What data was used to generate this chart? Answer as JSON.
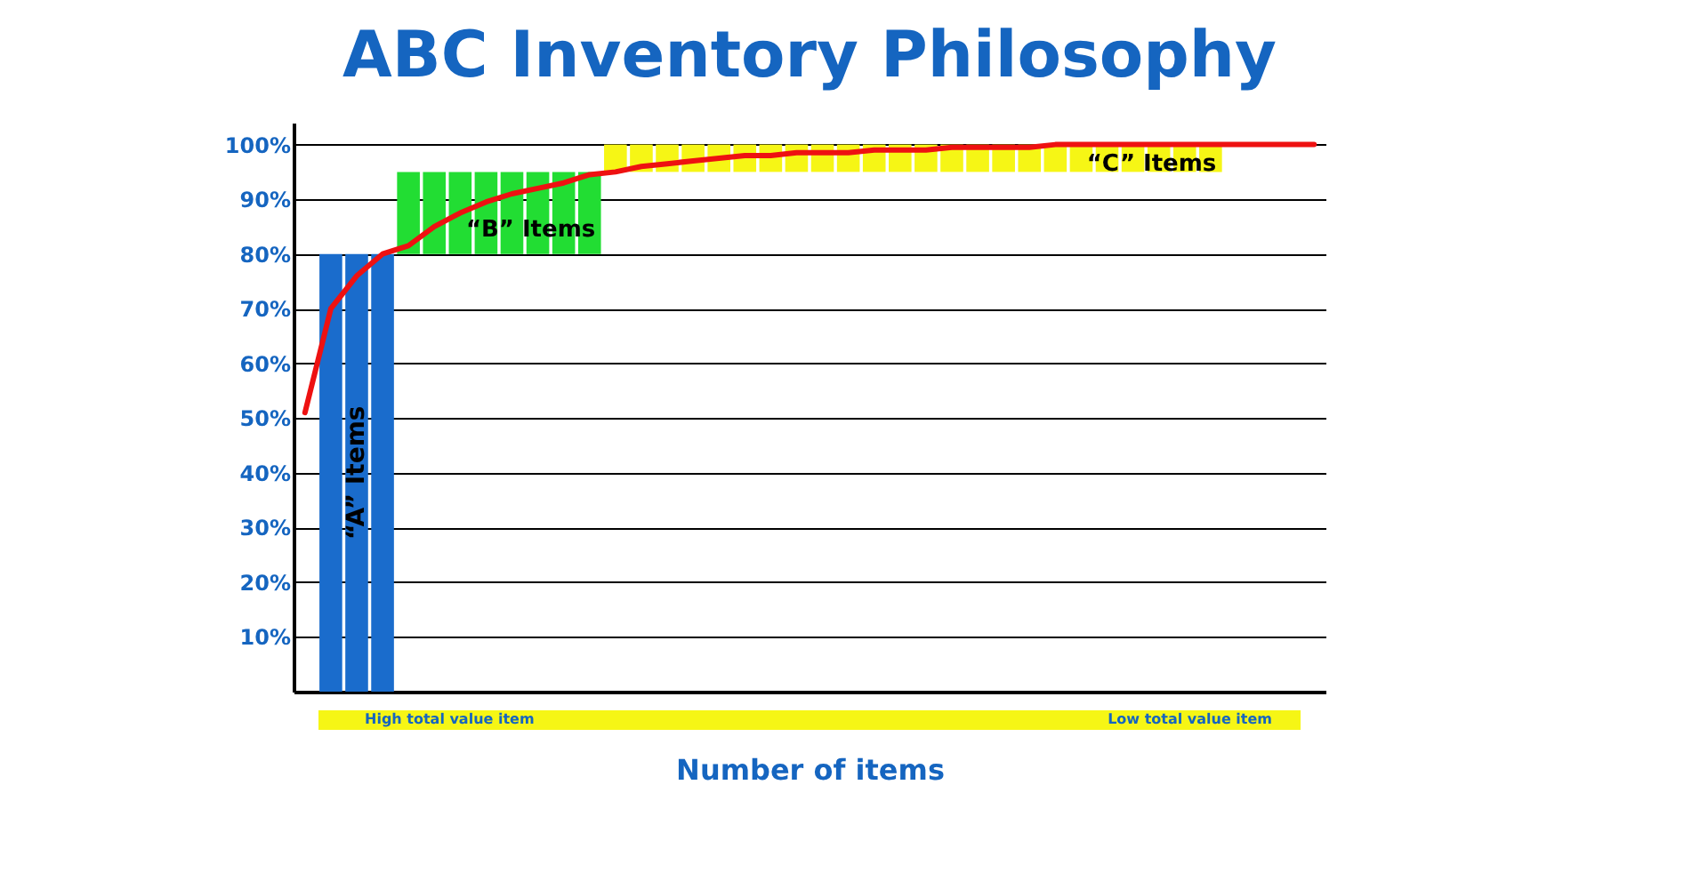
{
  "chart_data": {
    "type": "bar",
    "title": "ABC Inventory Philosophy",
    "xlabel": "Number of items",
    "categories": [
      null,
      null,
      null,
      null,
      null,
      null,
      null,
      null,
      null,
      null,
      null,
      null,
      null,
      null,
      null,
      null,
      null,
      null,
      null,
      null,
      null,
      null,
      null,
      null,
      null,
      null,
      null,
      null,
      null,
      null,
      null,
      null,
      null,
      null,
      null,
      null,
      null,
      null,
      null,
      null
    ],
    "series": [
      {
        "name": "“A” Items",
        "color": "#1a6ccc",
        "values": [
          null,
          80,
          80,
          80,
          null,
          null,
          null,
          null,
          null,
          null,
          null,
          null,
          null,
          null,
          null,
          null,
          null,
          null,
          null,
          null,
          null,
          null,
          null,
          null,
          null,
          null,
          null,
          null,
          null,
          null,
          null,
          null,
          null,
          null,
          null,
          null,
          null,
          null,
          null,
          null
        ],
        "base": [
          null,
          0,
          0,
          0,
          null,
          null,
          null,
          null,
          null,
          null,
          null,
          null,
          null,
          null,
          null,
          null,
          null,
          null,
          null,
          null,
          null,
          null,
          null,
          null,
          null,
          null,
          null,
          null,
          null,
          null,
          null,
          null,
          null,
          null,
          null,
          null,
          null,
          null,
          null,
          null
        ]
      },
      {
        "name": "“B” Items",
        "color": "#22dd33",
        "values": [
          null,
          null,
          null,
          null,
          15,
          15,
          15,
          15,
          15,
          15,
          15,
          15,
          null,
          null,
          null,
          null,
          null,
          null,
          null,
          null,
          null,
          null,
          null,
          null,
          null,
          null,
          null,
          null,
          null,
          null,
          null,
          null,
          null,
          null,
          null,
          null,
          null,
          null,
          null,
          null
        ],
        "base": [
          null,
          null,
          null,
          null,
          80,
          80,
          80,
          80,
          80,
          80,
          80,
          80,
          null,
          null,
          null,
          null,
          null,
          null,
          null,
          null,
          null,
          null,
          null,
          null,
          null,
          null,
          null,
          null,
          null,
          null,
          null,
          null,
          null,
          null,
          null,
          null,
          null,
          null,
          null,
          null
        ]
      },
      {
        "name": "“C” Items",
        "color": "#f6f615",
        "values": [
          null,
          null,
          null,
          null,
          null,
          null,
          null,
          null,
          null,
          null,
          null,
          null,
          5,
          5,
          5,
          5,
          5,
          5,
          5,
          5,
          5,
          5,
          5,
          5,
          5,
          5,
          5,
          5,
          5,
          5,
          5,
          5,
          5,
          5,
          5,
          5,
          null,
          null,
          null,
          null
        ],
        "base": [
          null,
          null,
          null,
          null,
          null,
          null,
          null,
          null,
          null,
          null,
          null,
          null,
          95,
          95,
          95,
          95,
          95,
          95,
          95,
          95,
          95,
          95,
          95,
          95,
          95,
          95,
          95,
          95,
          95,
          95,
          95,
          95,
          95,
          95,
          95,
          95,
          null,
          null,
          null,
          null
        ]
      },
      {
        "type": "line",
        "color": "#ee1111",
        "values": [
          51,
          70,
          76,
          80,
          81.5,
          85,
          87.5,
          89.5,
          91,
          92,
          93,
          94.5,
          95,
          96,
          96.5,
          97,
          97.5,
          98,
          98,
          98.5,
          98.5,
          98.5,
          99,
          99,
          99,
          99.5,
          99.5,
          99.5,
          99.5,
          100,
          100,
          100,
          100,
          100,
          100,
          100,
          100,
          100,
          100,
          100
        ]
      }
    ],
    "ylim": [
      0,
      104
    ],
    "yticks": [
      {
        "value": 10,
        "label": "10%"
      },
      {
        "value": 20,
        "label": "20%"
      },
      {
        "value": 30,
        "label": "30%"
      },
      {
        "value": 40,
        "label": "40%"
      },
      {
        "value": 50,
        "label": "50%"
      },
      {
        "value": 60,
        "label": "60%"
      },
      {
        "value": 70,
        "label": "70%"
      },
      {
        "value": 80,
        "label": "80%"
      },
      {
        "value": 90,
        "label": "90%"
      },
      {
        "value": 100,
        "label": "100%"
      }
    ],
    "grid": "y",
    "annotations": [
      "High total value item",
      "Low total value item"
    ]
  }
}
